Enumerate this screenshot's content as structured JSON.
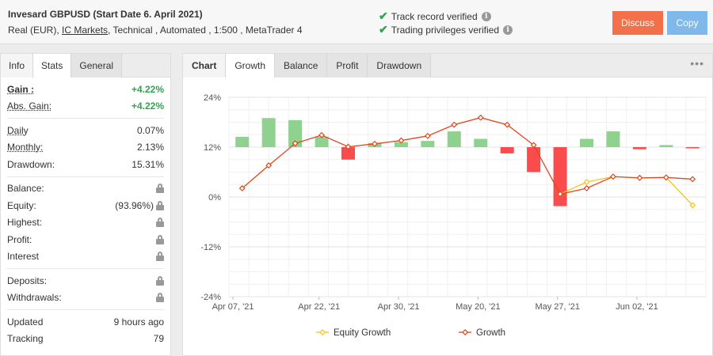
{
  "header": {
    "title": "Invesard GBPUSD (Start Date 6. April 2021)",
    "sub_prefix": "Real (EUR),",
    "broker": "IC Markets",
    "sub_suffix": ", Technical , Automated , 1:500 , MetaTrader 4",
    "verified_1": "Track record verified",
    "verified_2": "Trading privileges verified",
    "discuss": "Discuss",
    "copy": "Copy"
  },
  "left_tabs": [
    "Info",
    "Stats",
    "General"
  ],
  "stats": {
    "gain_label": "Gain :",
    "gain_value": "+4.22%",
    "abs_gain_label": "Abs. Gain:",
    "abs_gain_value": "+4.22%",
    "daily_label": "Daily",
    "daily_value": "0.07%",
    "monthly_label": "Monthly:",
    "monthly_value": "2.13%",
    "drawdown_label": "Drawdown:",
    "drawdown_value": "15.31%",
    "balance_label": "Balance:",
    "equity_label": "Equity:",
    "equity_value": "(93.96%)",
    "highest_label": "Highest:",
    "profit_label": "Profit:",
    "interest_label": "Interest",
    "deposits_label": "Deposits:",
    "withdrawals_label": "Withdrawals:",
    "updated_label": "Updated",
    "updated_value": "9 hours ago",
    "tracking_label": "Tracking",
    "tracking_value": "79"
  },
  "right_tabs": [
    "Chart",
    "Growth",
    "Balance",
    "Profit",
    "Drawdown"
  ],
  "chart_data": {
    "type": "bar",
    "y_ticks": [
      "24%",
      "12%",
      "0%",
      "-12%",
      "-24%"
    ],
    "ylim": [
      -24,
      24
    ],
    "x_tick_labels": [
      "Apr 07, '21",
      "Apr 22, '21",
      "Apr 30, '21",
      "May 20, '21",
      "May 27, '21",
      "Jun 02, '21"
    ],
    "bars": [
      {
        "base": 12,
        "value": 14.5
      },
      {
        "base": 12,
        "value": 19.0
      },
      {
        "base": 12,
        "value": 18.5
      },
      {
        "base": 12,
        "value": 14.5
      },
      {
        "base": 12,
        "value": 9.0
      },
      {
        "base": 12,
        "value": 13.0
      },
      {
        "base": 12,
        "value": 13.2
      },
      {
        "base": 12,
        "value": 13.5
      },
      {
        "base": 12,
        "value": 15.8
      },
      {
        "base": 12,
        "value": 14.0
      },
      {
        "base": 12,
        "value": 10.5
      },
      {
        "base": 12,
        "value": 6.0
      },
      {
        "base": 12,
        "value": -2.2
      },
      {
        "base": 12,
        "value": 14.0
      },
      {
        "base": 12,
        "value": 15.8
      },
      {
        "base": 12,
        "value": 11.5
      },
      {
        "base": 12,
        "value": 12.5
      },
      {
        "base": 12,
        "value": 11.8
      }
    ],
    "series": [
      {
        "name": "Equity Growth",
        "color": "#f5c518",
        "points": [
          [
            12,
            0.7
          ],
          [
            13,
            3.6
          ],
          [
            14,
            4.9
          ],
          [
            15,
            4.6
          ],
          [
            16,
            4.7
          ],
          [
            17,
            -2.0
          ]
        ]
      },
      {
        "name": "Growth",
        "color": "#e0461f",
        "points": [
          [
            0,
            2.1
          ],
          [
            1,
            7.6
          ],
          [
            2,
            12.9
          ],
          [
            3,
            14.9
          ],
          [
            4,
            12.1
          ],
          [
            5,
            12.8
          ],
          [
            6,
            13.6
          ],
          [
            7,
            14.7
          ],
          [
            8,
            17.4
          ],
          [
            9,
            19.1
          ],
          [
            10,
            17.4
          ],
          [
            11,
            12.5
          ],
          [
            12,
            0.7
          ],
          [
            13,
            2.1
          ],
          [
            14,
            4.9
          ],
          [
            15,
            4.6
          ],
          [
            16,
            4.7
          ],
          [
            17,
            4.3
          ]
        ]
      }
    ],
    "colors": {
      "positive": "#8fd18f",
      "negative": "#fa4c4c"
    }
  }
}
